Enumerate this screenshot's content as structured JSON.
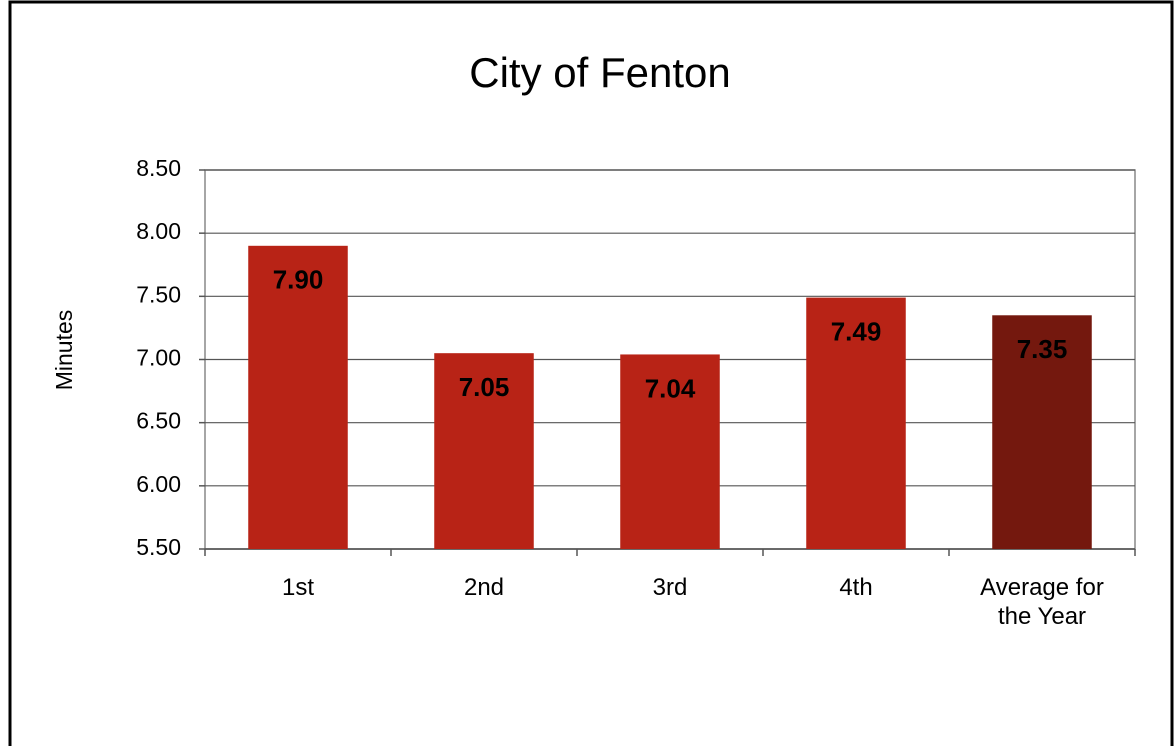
{
  "chart_data": {
    "type": "bar",
    "title": "City of Fenton",
    "y_label": "Minutes",
    "categories": [
      "1st",
      "2nd",
      "3rd",
      "4th",
      "Average for the Year"
    ],
    "values": [
      7.9,
      7.05,
      7.04,
      7.49,
      7.35
    ],
    "value_labels": [
      "7.90",
      "7.05",
      "7.04",
      "7.49",
      "7.35"
    ],
    "colors": [
      "#b82316",
      "#b82316",
      "#b82316",
      "#b82316",
      "#74180e"
    ],
    "ylim": [
      5.5,
      8.5
    ],
    "yticks": [
      {
        "value": 5.5,
        "label": "5.50"
      },
      {
        "value": 6,
        "label": "6.00"
      },
      {
        "value": 6.5,
        "label": "6.50"
      },
      {
        "value": 7,
        "label": "7.00"
      },
      {
        "value": 7.5,
        "label": "7.50"
      },
      {
        "value": 8,
        "label": "8.00"
      },
      {
        "value": 8.5,
        "label": "8.50"
      }
    ],
    "grid": true
  }
}
